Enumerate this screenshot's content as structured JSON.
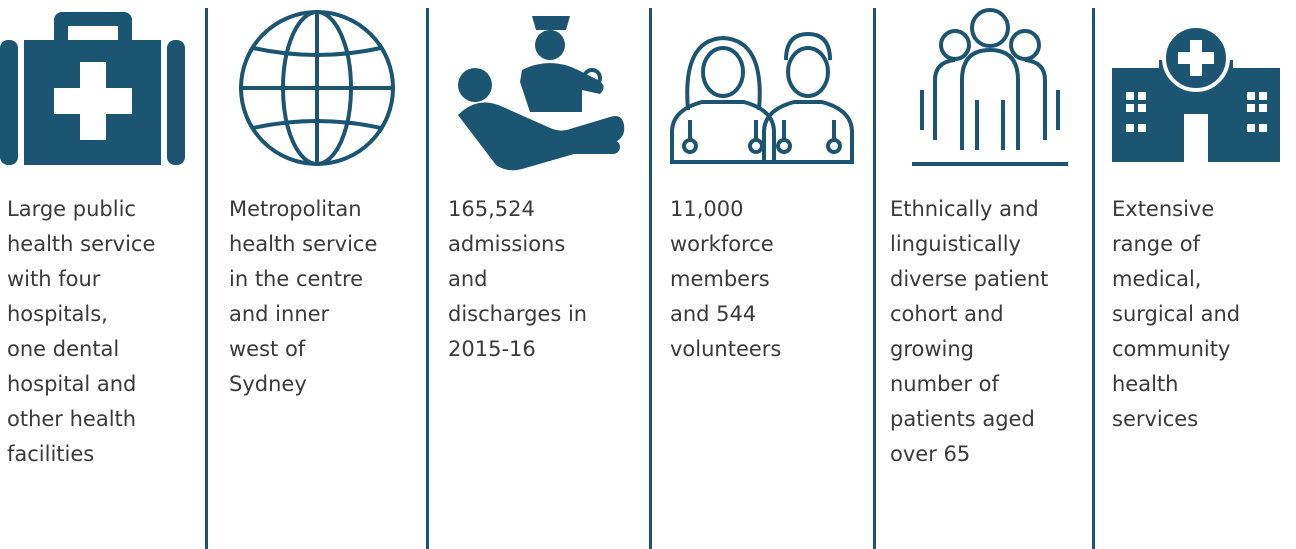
{
  "columns": [
    {
      "lines": [
        "Large public",
        "health service",
        "with four",
        "hospitals,",
        "one dental",
        "hospital and",
        "other health",
        "facilities"
      ]
    },
    {
      "lines": [
        "Metropolitan",
        "health service",
        "in the centre",
        "and inner",
        "west of",
        "Sydney"
      ]
    },
    {
      "lines": [
        "165,524",
        "admissions",
        "and",
        "discharges in",
        "2015-16"
      ]
    },
    {
      "lines": [
        "11,000",
        "workforce",
        "members",
        "and 544",
        "volunteers"
      ]
    },
    {
      "lines": [
        "Ethnically and",
        "linguistically",
        "diverse patient",
        "cohort and",
        "growing",
        "number of",
        "patients aged",
        "over 65"
      ]
    },
    {
      "lines": [
        "Extensive",
        "range of",
        "medical,",
        "surgical and",
        "community",
        "health",
        "services"
      ]
    }
  ]
}
